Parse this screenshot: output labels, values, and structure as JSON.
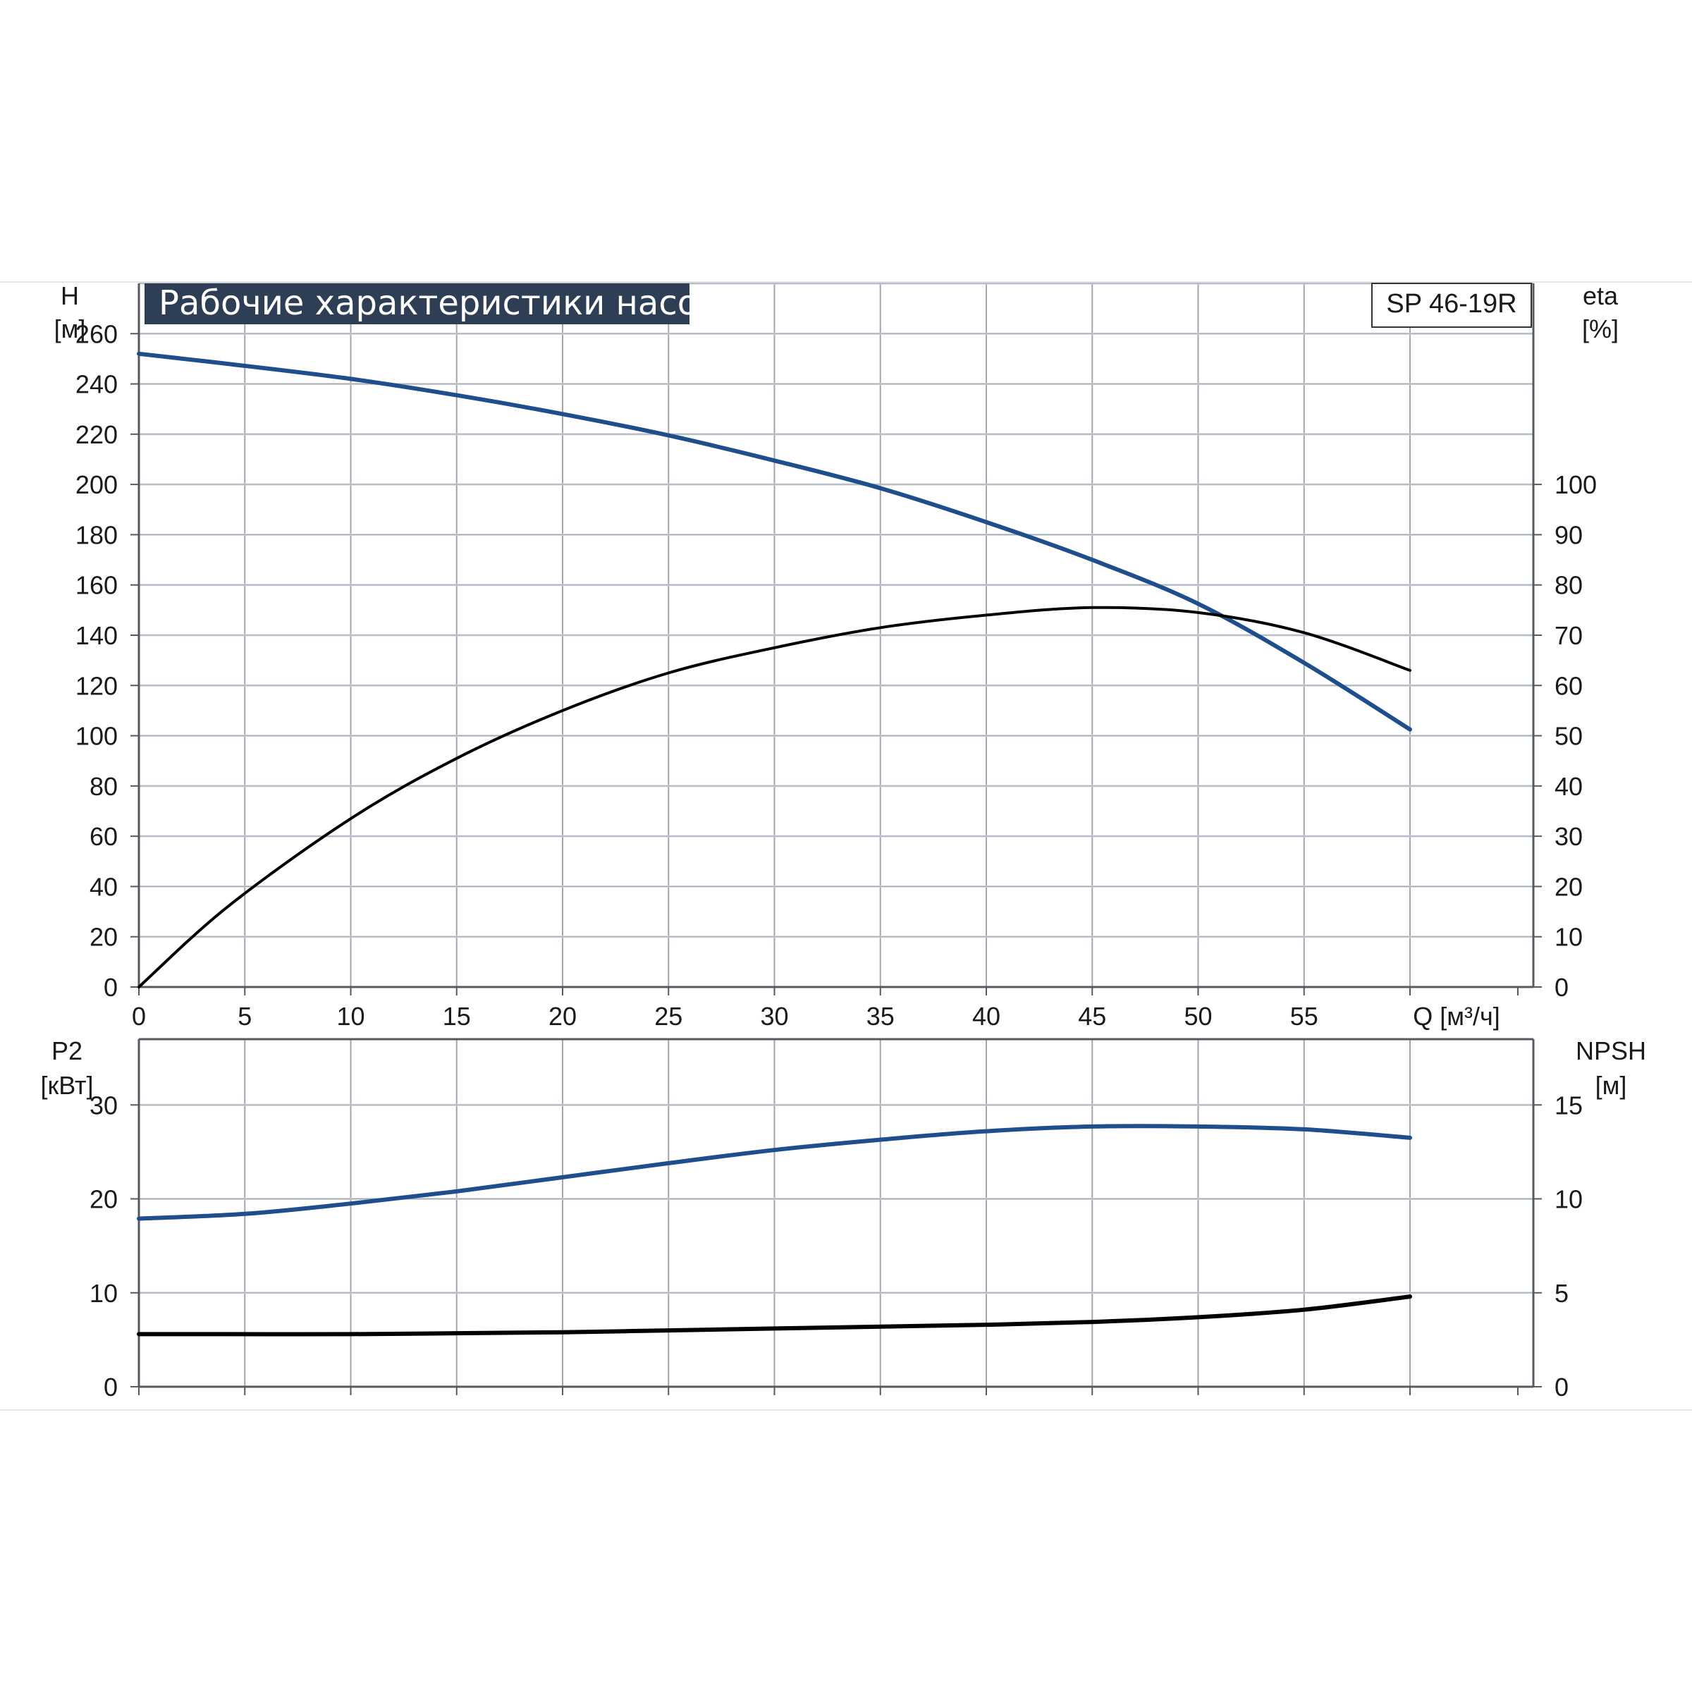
{
  "chart_data": [
    {
      "type": "line",
      "title": "Рабочие характеристики насоса",
      "model_label": "SP 46-19R",
      "x_axis": {
        "label": "Q [м³/ч]",
        "lim": [
          0,
          60
        ],
        "ticks": [
          0,
          5,
          10,
          15,
          20,
          25,
          30,
          35,
          40,
          45,
          50,
          55
        ],
        "tick_labels": [
          "0",
          "5",
          "10",
          "15",
          "20",
          "25",
          "30",
          "35",
          "40",
          "45",
          "50",
          "55"
        ]
      },
      "y_axis_left": {
        "label_line1": "H",
        "label_line2": "[м]",
        "lim": [
          0,
          280
        ],
        "ticks": [
          0,
          20,
          40,
          60,
          80,
          100,
          120,
          140,
          160,
          180,
          200,
          220,
          240,
          260
        ],
        "tick_labels": [
          "0",
          "20",
          "40",
          "60",
          "80",
          "100",
          "120",
          "140",
          "160",
          "180",
          "200",
          "220",
          "240",
          "260"
        ]
      },
      "y_axis_right": {
        "label_line1": "eta",
        "label_line2": "[%]",
        "lim": [
          0,
          140
        ],
        "ticks": [
          0,
          10,
          20,
          30,
          40,
          50,
          60,
          70,
          80,
          90,
          100
        ],
        "tick_labels": [
          "0",
          "10",
          "20",
          "30",
          "40",
          "50",
          "60",
          "70",
          "80",
          "90",
          "100"
        ]
      },
      "grid": true,
      "series": [
        {
          "axis": "left",
          "color": "#1f4e8c",
          "x": [
            0,
            4.2,
            10,
            15,
            20,
            25,
            30,
            35,
            40,
            45,
            50,
            55,
            60
          ],
          "y": [
            252,
            248,
            242,
            235.5,
            228,
            219.5,
            209.5,
            198.5,
            185,
            170,
            152.5,
            129,
            102.5
          ]
        },
        {
          "axis": "right",
          "color": "#000000",
          "x": [
            0,
            4.2,
            10,
            15,
            20,
            25,
            30,
            35,
            40,
            45,
            50,
            55,
            60
          ],
          "y": [
            0,
            16,
            33.5,
            45.5,
            55,
            62.5,
            67.5,
            71.5,
            74,
            75.5,
            74.5,
            70.5,
            63
          ]
        }
      ]
    },
    {
      "type": "line",
      "x_axis": {
        "lim": [
          0,
          60
        ],
        "ticks": [
          0,
          5,
          10,
          15,
          20,
          25,
          30,
          35,
          40,
          45,
          50,
          55
        ]
      },
      "y_axis_left": {
        "label_line1": "P2",
        "label_line2": "[кВт]",
        "lim": [
          0,
          37
        ],
        "ticks": [
          0,
          10,
          20,
          30
        ],
        "tick_labels": [
          "0",
          "10",
          "20",
          "30"
        ]
      },
      "y_axis_right": {
        "label_line1": "NPSH",
        "label_line2": "[м]",
        "lim": [
          0,
          18.5
        ],
        "ticks": [
          0,
          5,
          10,
          15
        ],
        "tick_labels": [
          "0",
          "5",
          "10",
          "15"
        ]
      },
      "grid": true,
      "series": [
        {
          "axis": "left",
          "color": "#1f4e8c",
          "x": [
            0,
            5,
            10,
            15,
            20,
            25,
            30,
            35,
            40,
            45,
            50,
            55,
            60
          ],
          "y": [
            17.9,
            18.4,
            19.5,
            20.8,
            22.3,
            23.8,
            25.2,
            26.3,
            27.2,
            27.7,
            27.7,
            27.4,
            26.5
          ]
        },
        {
          "axis": "right",
          "color": "#000000",
          "x": [
            0,
            4.2,
            10,
            15,
            20,
            25,
            30,
            35,
            40,
            45,
            50,
            55,
            60
          ],
          "y": [
            2.8,
            2.8,
            2.8,
            2.85,
            2.9,
            3.0,
            3.1,
            3.2,
            3.3,
            3.45,
            3.7,
            4.1,
            4.8
          ]
        }
      ]
    }
  ]
}
